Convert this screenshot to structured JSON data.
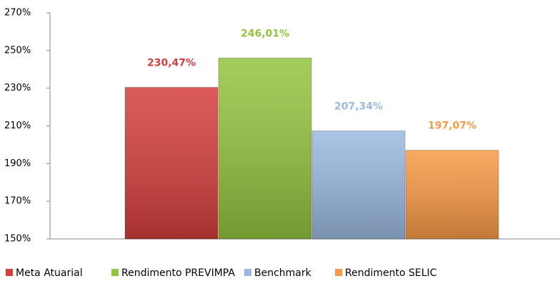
{
  "chart_data": {
    "type": "bar",
    "categories": [
      null
    ],
    "series": [
      {
        "name": "Meta Atuarial",
        "color": "#d43f3c",
        "values": [
          230.47
        ],
        "value_labels": [
          "230,47%"
        ]
      },
      {
        "name": "Rendimento PREVIMPA",
        "color": "#93c43f",
        "values": [
          246.01
        ],
        "value_labels": [
          "246,01%"
        ]
      },
      {
        "name": "Benchmark",
        "color": "#9bb9e0",
        "values": [
          207.34
        ],
        "value_labels": [
          "207,34%"
        ]
      },
      {
        "name": "Rendimento SELIC",
        "color": "#f89a45",
        "values": [
          197.07
        ],
        "value_labels": [
          "197,07%"
        ]
      }
    ],
    "ylim": [
      150,
      270
    ],
    "yticks": [
      {
        "value": 150,
        "label": "150%"
      },
      {
        "value": 170,
        "label": "170%"
      },
      {
        "value": 190,
        "label": "190%"
      },
      {
        "value": 210,
        "label": "210%"
      },
      {
        "value": 230,
        "label": "230%"
      },
      {
        "value": 250,
        "label": "250%"
      },
      {
        "value": 270,
        "label": "270%"
      }
    ],
    "grid": false,
    "legend": "bottom"
  }
}
